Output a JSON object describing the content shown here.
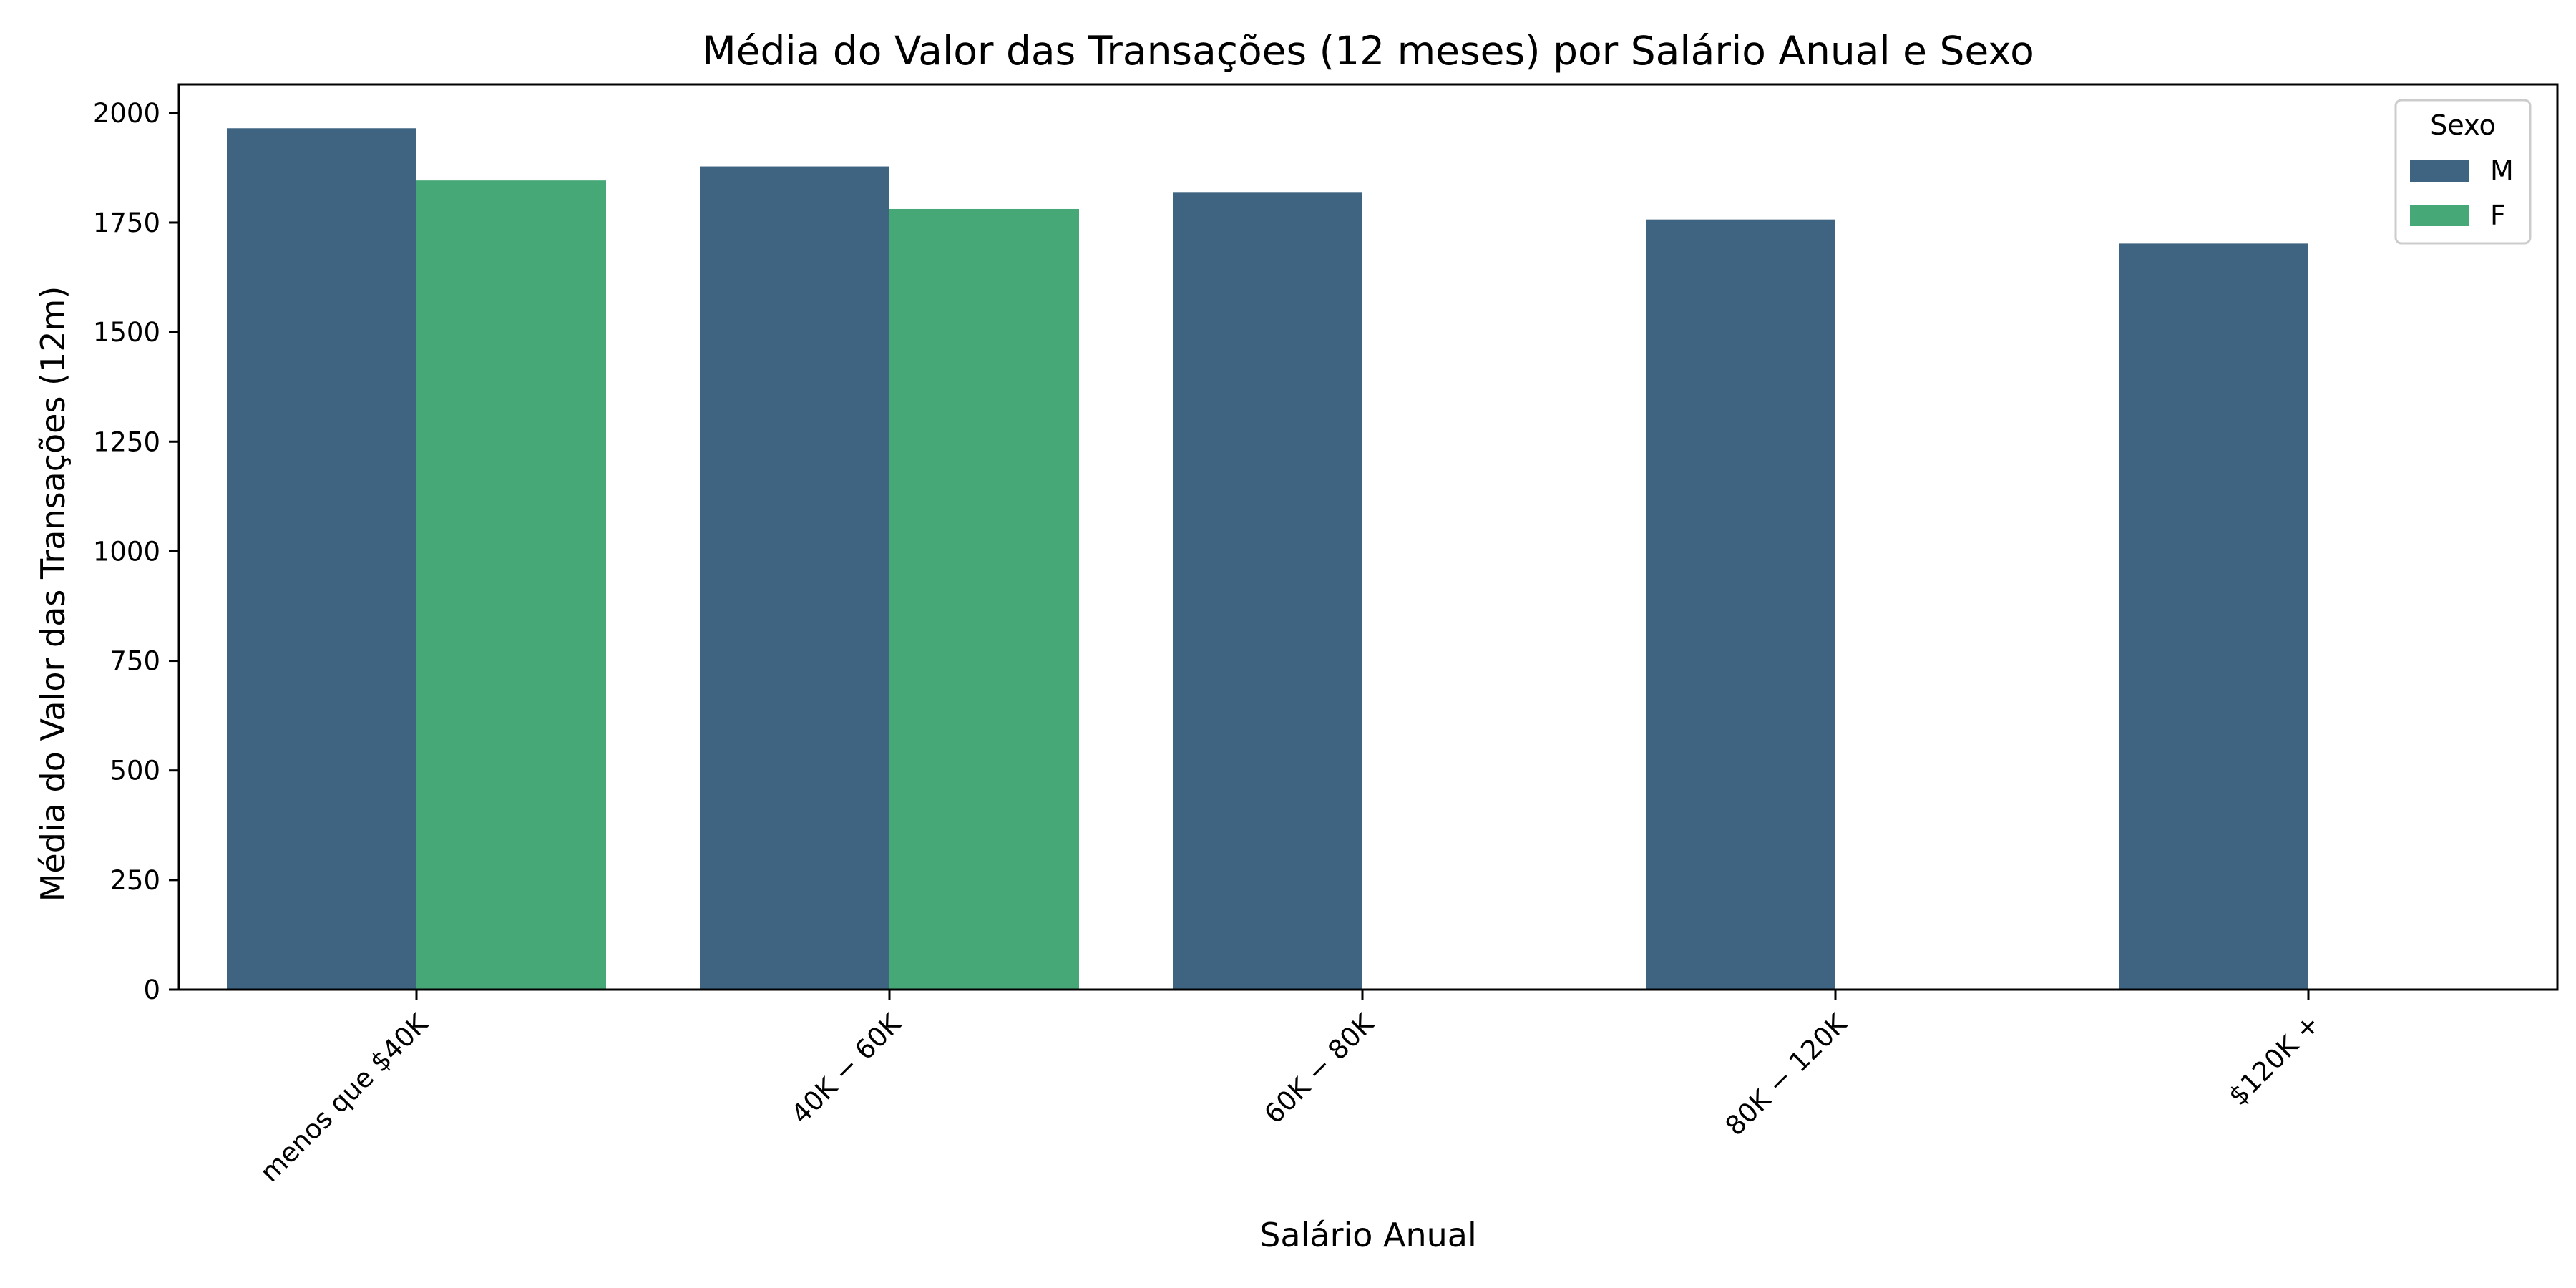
{
  "chart_data": {
    "type": "bar",
    "title": "Média do Valor das Transações (12 meses) por Salário Anual e Sexo",
    "xlabel": "Salário Anual",
    "ylabel": "Média do Valor das Transações (12m)",
    "categories": [
      "menos que $40K",
      "40K − 60K",
      "60K − 80K",
      "80K − 120K",
      "$120K +"
    ],
    "series": [
      {
        "name": "M",
        "color": "#3e6482",
        "values": [
          1965,
          1878,
          1818,
          1757,
          1702
        ]
      },
      {
        "name": "F",
        "color": "#47a877",
        "values": [
          1846,
          1781,
          null,
          null,
          null
        ]
      }
    ],
    "ylim": [
      0,
      2065
    ],
    "yticks": [
      0,
      250,
      500,
      750,
      1000,
      1250,
      1500,
      1750,
      2000
    ],
    "grid": false,
    "legend": {
      "title": "Sexo",
      "placement": "top-right"
    }
  }
}
